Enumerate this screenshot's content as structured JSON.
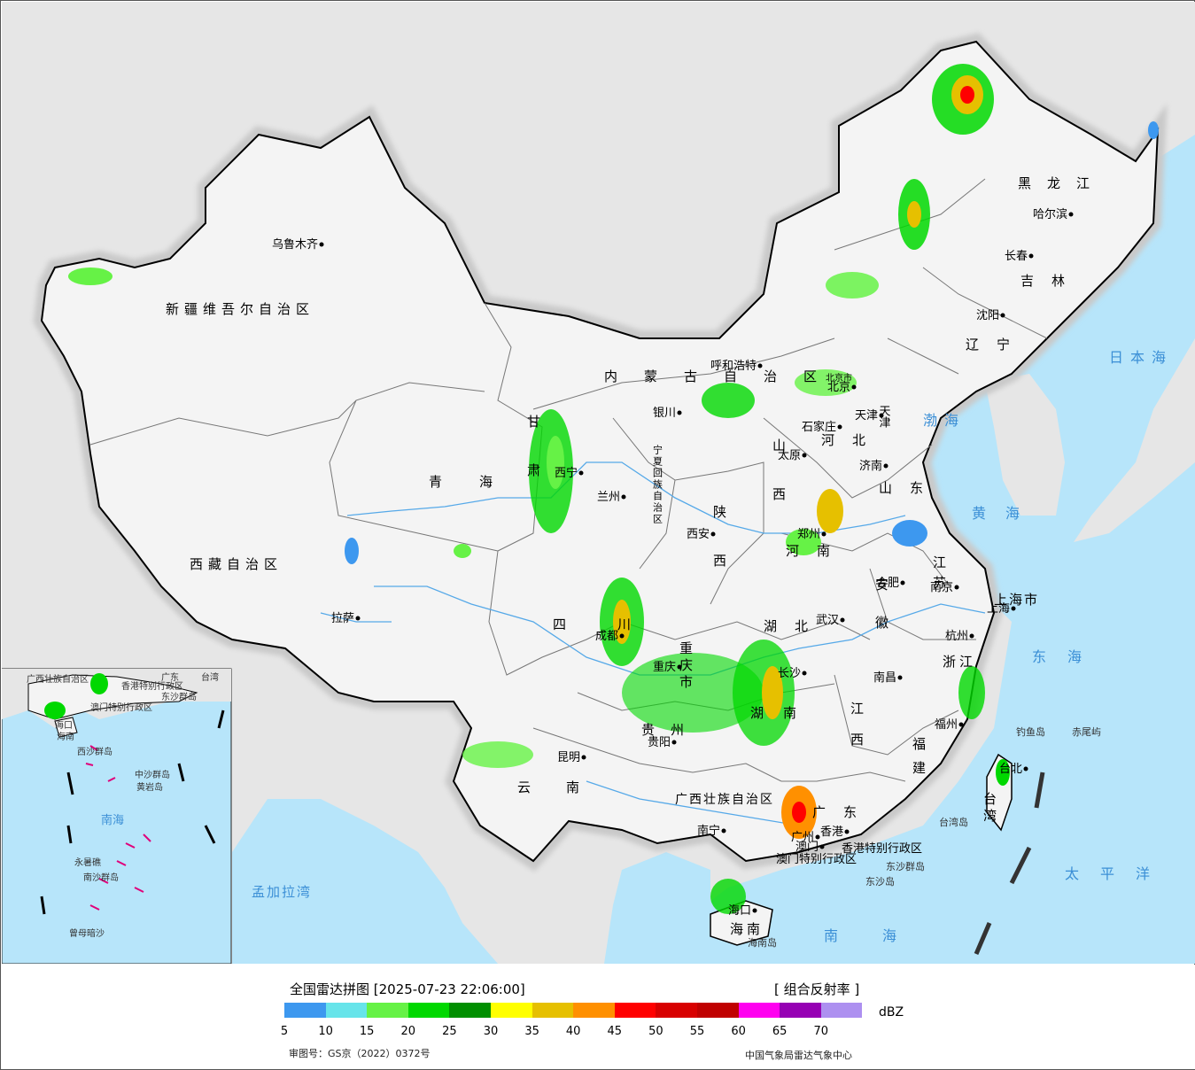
{
  "colors": {
    "sea": "#b7e5fa",
    "land": "#f4f4f4",
    "foreign_land": "#e6e6e6",
    "border": "#000000",
    "province_border": "#777777",
    "river": "#56a9e8"
  },
  "map": {
    "provinces_large": [
      {
        "text": "新疆维吾尔自治区"
      },
      {
        "text": "西藏自治区"
      },
      {
        "text": "青海"
      },
      {
        "text": "甘肃"
      },
      {
        "text": "内蒙古自治区"
      },
      {
        "text": "黑龙江"
      },
      {
        "text": "吉林"
      },
      {
        "text": "辽宁"
      },
      {
        "text": "河北"
      },
      {
        "text": "山西"
      },
      {
        "text": "山东"
      },
      {
        "text": "河南"
      },
      {
        "text": "陕西"
      },
      {
        "text": "宁夏回族自治区"
      },
      {
        "text": "四川"
      },
      {
        "text": "重庆市"
      },
      {
        "text": "湖北"
      },
      {
        "text": "安徽"
      },
      {
        "text": "江苏"
      },
      {
        "text": "上海市"
      },
      {
        "text": "浙江"
      },
      {
        "text": "江西"
      },
      {
        "text": "湖南"
      },
      {
        "text": "贵州"
      },
      {
        "text": "云南"
      },
      {
        "text": "广西壮族自治区"
      },
      {
        "text": "广东"
      },
      {
        "text": "福建"
      },
      {
        "text": "台湾"
      },
      {
        "text": "海南"
      },
      {
        "text": "北京市"
      },
      {
        "text": "天津"
      },
      {
        "text": "香港特别行政区"
      },
      {
        "text": "澳门特别行政区"
      }
    ],
    "cities": [
      {
        "text": "乌鲁木齐"
      },
      {
        "text": "拉萨"
      },
      {
        "text": "西宁"
      },
      {
        "text": "兰州"
      },
      {
        "text": "银川"
      },
      {
        "text": "呼和浩特"
      },
      {
        "text": "北京"
      },
      {
        "text": "天津"
      },
      {
        "text": "石家庄"
      },
      {
        "text": "太原"
      },
      {
        "text": "济南"
      },
      {
        "text": "郑州"
      },
      {
        "text": "西安"
      },
      {
        "text": "成都"
      },
      {
        "text": "重庆"
      },
      {
        "text": "武汉"
      },
      {
        "text": "合肥"
      },
      {
        "text": "南京"
      },
      {
        "text": "上海"
      },
      {
        "text": "杭州"
      },
      {
        "text": "南昌"
      },
      {
        "text": "长沙"
      },
      {
        "text": "贵阳"
      },
      {
        "text": "昆明"
      },
      {
        "text": "南宁"
      },
      {
        "text": "广州"
      },
      {
        "text": "福州"
      },
      {
        "text": "台北"
      },
      {
        "text": "海口"
      },
      {
        "text": "哈尔滨"
      },
      {
        "text": "长春"
      },
      {
        "text": "沈阳"
      },
      {
        "text": "香港"
      },
      {
        "text": "澳门"
      }
    ],
    "seas": [
      {
        "text": "日本海"
      },
      {
        "text": "渤海"
      },
      {
        "text": "黄海"
      },
      {
        "text": "东海"
      },
      {
        "text": "太平洋"
      },
      {
        "text": "南海"
      },
      {
        "text": "孟加拉湾"
      }
    ],
    "islands": [
      {
        "text": "钓鱼岛"
      },
      {
        "text": "赤尾屿"
      },
      {
        "text": "台湾岛"
      },
      {
        "text": "东沙群岛"
      },
      {
        "text": "东沙岛"
      },
      {
        "text": "海南岛"
      }
    ],
    "inset_labels": [
      {
        "text": "广西壮族自治区"
      },
      {
        "text": "香港特别行政区"
      },
      {
        "text": "澳门特别行政区"
      },
      {
        "text": "海口"
      },
      {
        "text": "海南"
      },
      {
        "text": "西沙群岛"
      },
      {
        "text": "中沙群岛"
      },
      {
        "text": "黄岩岛"
      },
      {
        "text": "南海"
      },
      {
        "text": "南沙群岛"
      },
      {
        "text": "永暑礁"
      },
      {
        "text": "曾母暗沙"
      },
      {
        "text": "东沙群岛"
      },
      {
        "text": "台湾"
      },
      {
        "text": "广东"
      }
    ]
  },
  "legend": {
    "title": "全国雷达拼图 [2025-07-23 22:06:00]",
    "type": "[ 组合反射率 ]",
    "unit": "dBZ",
    "colors": [
      "#3d98ef",
      "#67e4ea",
      "#66f246",
      "#00d800",
      "#008f00",
      "#ffff00",
      "#e6c000",
      "#ff9000",
      "#ff0000",
      "#d80000",
      "#c00000",
      "#ff00f0",
      "#9600b4",
      "#ad90f0"
    ],
    "ticks": [
      "5",
      "10",
      "15",
      "20",
      "25",
      "30",
      "35",
      "40",
      "45",
      "50",
      "55",
      "60",
      "65",
      "70"
    ],
    "approval": "审图号：GS京（2022）0372号",
    "center": "中国气象局雷达气象中心"
  }
}
